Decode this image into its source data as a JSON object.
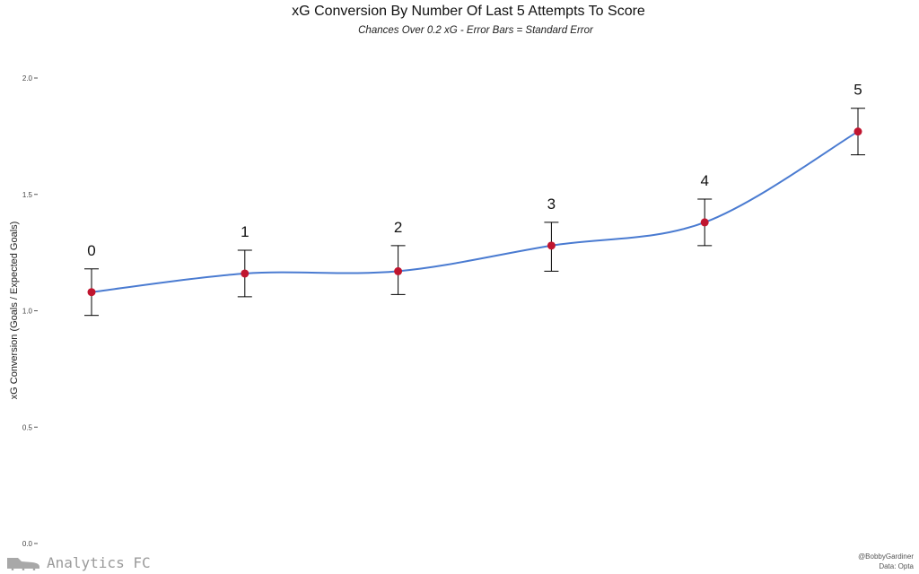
{
  "chart_data": {
    "type": "scatter",
    "title": "xG Conversion By Number Of Last 5 Attempts To Score",
    "subtitle": "Chances Over 0.2 xG - Error Bars = Standard Error",
    "xlabel": "",
    "ylabel": "xG Conversion (Goals / Expected Goals)",
    "ylim": [
      0,
      2.05
    ],
    "xlim": [
      -0.15,
      5.15
    ],
    "yticks": [
      "0.0",
      "0.5",
      "1.0",
      "1.5",
      "2.0"
    ],
    "grid": false,
    "points": [
      {
        "label": "0",
        "x": 0,
        "y": 1.08,
        "lo": 0.98,
        "hi": 1.18
      },
      {
        "label": "1",
        "x": 1,
        "y": 1.16,
        "lo": 1.06,
        "hi": 1.26
      },
      {
        "label": "2",
        "x": 2,
        "y": 1.17,
        "lo": 1.07,
        "hi": 1.28
      },
      {
        "label": "3",
        "x": 3,
        "y": 1.28,
        "lo": 1.17,
        "hi": 1.38
      },
      {
        "label": "4",
        "x": 4,
        "y": 1.38,
        "lo": 1.28,
        "hi": 1.48
      },
      {
        "label": "5",
        "x": 5,
        "y": 1.77,
        "lo": 1.67,
        "hi": 1.87
      }
    ],
    "colors": {
      "point": "#c0152f",
      "line": "#4a7bd1",
      "errorbar": "#000000"
    }
  },
  "footer": {
    "brand": "Analytics FC",
    "handle": "@BobbyGardiner",
    "source": "Data: Opta"
  }
}
